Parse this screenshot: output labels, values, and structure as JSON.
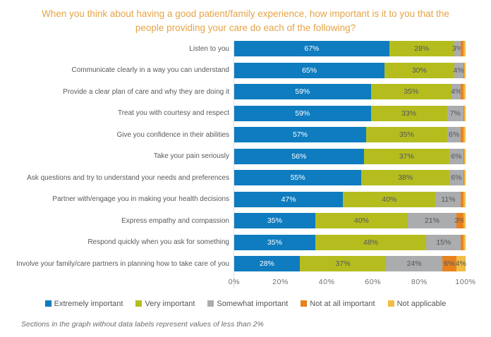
{
  "title": "When you think about having a good patient/family experience, how important is it to you that the people providing your care do each of the following?",
  "footnote": "Sections in the graph without data labels represent values of less than 2%",
  "colors": {
    "title": "#E5A447",
    "extremely_important": "#0E7CBF",
    "very_important": "#B5BD1E",
    "somewhat_important": "#ABACAE",
    "not_at_all_important": "#E8821D",
    "not_applicable": "#F2BC45",
    "axis_text": "#6D6E71",
    "category_text": "#58595B"
  },
  "chart_data": {
    "type": "bar",
    "variant": "horizontal_stacked_100pct",
    "title": "When you think about having a good patient/family experience, how important is it to you that the people providing your care do each of the following?",
    "categories": [
      "Listen to you",
      "Communicate clearly in a way you can understand",
      "Provide a clear plan of care and why they are doing it",
      "Treat you with courtesy and respect",
      "Give you confidence in their abilities",
      "Take your pain seriously",
      "Ask questions and try to understand your needs and preferences",
      "Partner with/engage you in making your health decisions",
      "Express empathy and compassion",
      "Respond quickly when you ask for something",
      "Involve your family/care partners in planning how to take care of you"
    ],
    "series": [
      {
        "name": "Extremely important",
        "color": "#0E7CBF",
        "values": [
          67,
          65,
          59,
          59,
          57,
          56,
          55,
          47,
          35,
          35,
          28
        ]
      },
      {
        "name": "Very important",
        "color": "#B5BD1E",
        "values": [
          28,
          30,
          35,
          33,
          35,
          37,
          38,
          40,
          40,
          48,
          37
        ]
      },
      {
        "name": "Somewhat important",
        "color": "#ABACAE",
        "values": [
          3,
          4,
          4,
          7,
          6,
          6,
          6,
          11,
          21,
          15,
          24
        ]
      },
      {
        "name": "Not at all important",
        "color": "#E8821D",
        "values": [
          1,
          0.5,
          1,
          0.5,
          1,
          0.5,
          0.5,
          1,
          3,
          1,
          6
        ]
      },
      {
        "name": "Not applicable",
        "color": "#F2BC45",
        "values": [
          1,
          0.5,
          1,
          0.5,
          1,
          0.5,
          0.5,
          1,
          1,
          1,
          4
        ]
      }
    ],
    "xlim": [
      0,
      100
    ],
    "x_ticks": [
      "0%",
      "20%",
      "40%",
      "60%",
      "80%",
      "100%"
    ],
    "legend_position": "bottom",
    "grid": "zero-line only",
    "label_rule": "segments smaller than 2% are not labeled"
  }
}
